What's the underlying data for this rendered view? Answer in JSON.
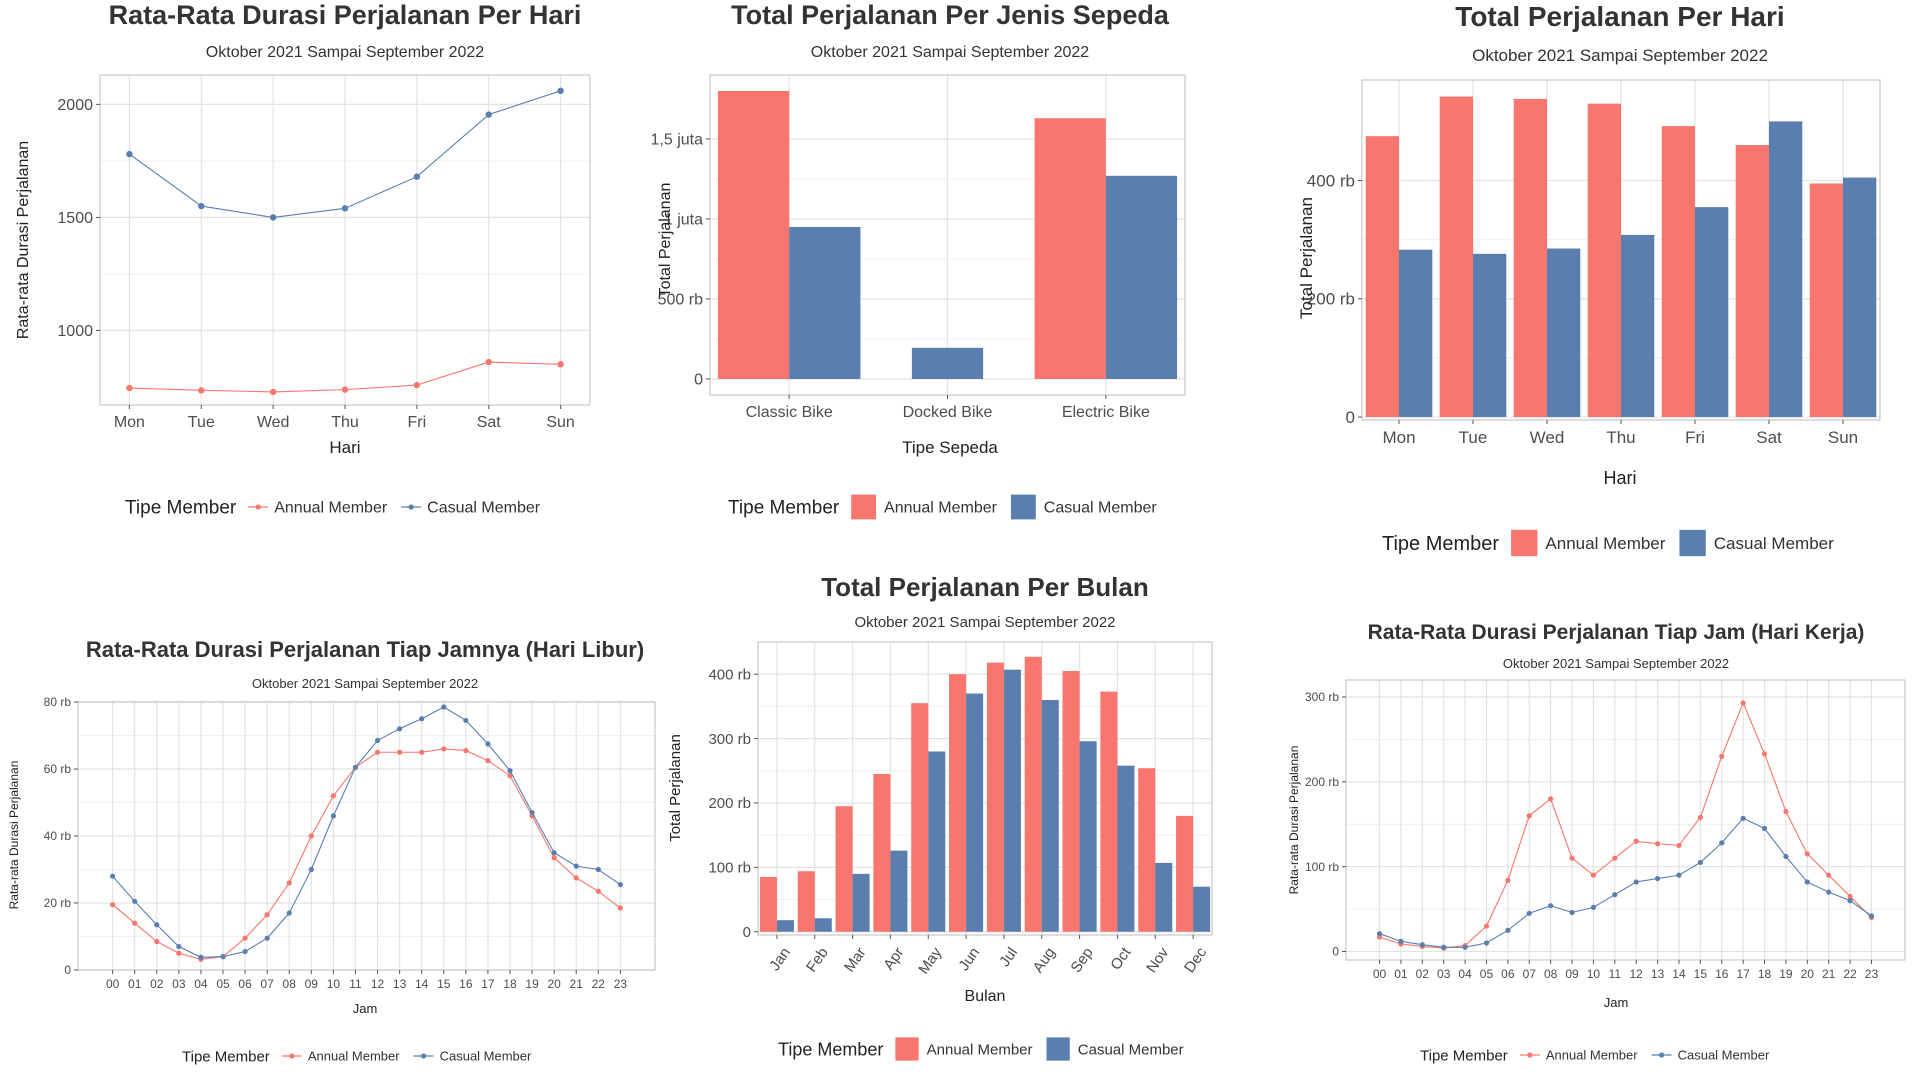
{
  "colors": {
    "annual": "#F8766D",
    "casual": "#5A7FAE",
    "grid": "#e3e3e3",
    "border": "#bdbdbd"
  },
  "chart_data": [
    {
      "id": "p1",
      "type": "line",
      "title": "Rata-Rata Durasi Perjalanan Per Hari",
      "subtitle": "Oktober 2021 Sampai September 2022",
      "xlabel": "Hari",
      "ylabel": "Rata-rata Durasi Perjalanan",
      "categories": [
        "Mon",
        "Tue",
        "Wed",
        "Thu",
        "Fri",
        "Sat",
        "Sun"
      ],
      "ylim": [
        670,
        2130
      ],
      "yticks": [
        1000,
        1500,
        2000
      ],
      "ytick_labels": [
        "1000",
        "1500",
        "2000"
      ],
      "grid": true,
      "legend_position": "bottom",
      "legend_title": "Tipe Member",
      "series": [
        {
          "name": "Annual Member",
          "color_key": "annual",
          "values": [
            745,
            735,
            728,
            738,
            758,
            860,
            850
          ]
        },
        {
          "name": "Casual Member",
          "color_key": "casual",
          "values": [
            1780,
            1550,
            1500,
            1540,
            1680,
            1955,
            2060
          ]
        }
      ]
    },
    {
      "id": "p2",
      "type": "bar",
      "title": "Total Perjalanan Per Jenis Sepeda",
      "subtitle": "Oktober 2021 Sampai September 2022",
      "xlabel": "Tipe Sepeda",
      "ylabel": "Total Perjalanan",
      "categories": [
        "Classic Bike",
        "Docked Bike",
        "Electric Bike"
      ],
      "ylim": [
        -100000,
        1900000
      ],
      "yticks": [
        0,
        500000,
        1000000,
        1500000
      ],
      "ytick_labels": [
        "0",
        "500 rb",
        "1 juta",
        "1,5 juta"
      ],
      "grid": true,
      "legend_position": "bottom",
      "legend_title": "Tipe Member",
      "series": [
        {
          "name": "Annual Member",
          "color_key": "annual",
          "values": [
            1800000,
            null,
            1630000
          ]
        },
        {
          "name": "Casual Member",
          "color_key": "casual",
          "values": [
            950000,
            195000,
            1270000
          ]
        }
      ]
    },
    {
      "id": "p3",
      "type": "bar",
      "title": "Total Perjalanan Per Hari",
      "subtitle": "Oktober 2021 Sampai September 2022",
      "xlabel": "Hari",
      "ylabel": "Total Perjalanan",
      "categories": [
        "Mon",
        "Tue",
        "Wed",
        "Thu",
        "Fri",
        "Sat",
        "Sun"
      ],
      "ylim": [
        -5000,
        570000
      ],
      "yticks": [
        0,
        200000,
        400000
      ],
      "ytick_labels": [
        "0",
        "200 rb",
        "400 rb"
      ],
      "grid": true,
      "legend_position": "bottom",
      "legend_title": "Tipe Member",
      "series": [
        {
          "name": "Annual Member",
          "color_key": "annual",
          "values": [
            475000,
            542000,
            538000,
            530000,
            492000,
            460000,
            395000
          ]
        },
        {
          "name": "Casual Member",
          "color_key": "casual",
          "values": [
            283000,
            276000,
            285000,
            308000,
            355000,
            500000,
            405000
          ]
        }
      ]
    },
    {
      "id": "p4",
      "type": "line",
      "title": "Rata-Rata Durasi Perjalanan Tiap Jamnya (Hari Libur)",
      "subtitle": "Oktober 2021 Sampai September 2022",
      "xlabel": "Jam",
      "ylabel": "Rata-rata Durasi Perjalanan",
      "categories": [
        "00",
        "01",
        "02",
        "03",
        "04",
        "05",
        "06",
        "07",
        "08",
        "09",
        "10",
        "11",
        "12",
        "13",
        "14",
        "15",
        "16",
        "17",
        "18",
        "19",
        "20",
        "21",
        "22",
        "23"
      ],
      "ylim": [
        0,
        80000
      ],
      "yticks": [
        0,
        20000,
        40000,
        60000,
        80000
      ],
      "ytick_labels": [
        "0",
        "20 rb",
        "40 rb",
        "60 rb",
        "80 rb"
      ],
      "grid": true,
      "legend_position": "bottom",
      "legend_title": "Tipe Member",
      "series": [
        {
          "name": "Annual Member",
          "color_key": "annual",
          "values": [
            19500,
            14000,
            8500,
            5000,
            3200,
            4000,
            9500,
            16500,
            26000,
            40000,
            52000,
            60500,
            65000,
            65000,
            65000,
            66000,
            65500,
            62500,
            58000,
            46000,
            33500,
            27500,
            23500,
            18500
          ]
        },
        {
          "name": "Casual Member",
          "color_key": "casual",
          "values": [
            28000,
            20500,
            13500,
            7000,
            3800,
            4000,
            5500,
            9500,
            17000,
            30000,
            46000,
            60500,
            68500,
            72000,
            75000,
            78500,
            74500,
            67500,
            59500,
            47000,
            35000,
            31000,
            30000,
            25500
          ]
        }
      ]
    },
    {
      "id": "p5",
      "type": "bar",
      "title": "Total Perjalanan Per Bulan",
      "subtitle": "Oktober 2021 Sampai September 2022",
      "xlabel": "Bulan",
      "ylabel": "Total Perjalanan",
      "categories": [
        "Jan",
        "Feb",
        "Mar",
        "Apr",
        "May",
        "Jun",
        "Jul",
        "Aug",
        "Sep",
        "Oct",
        "Nov",
        "Dec"
      ],
      "ylim": [
        -5000,
        450000
      ],
      "yticks": [
        0,
        100000,
        200000,
        300000,
        400000
      ],
      "ytick_labels": [
        "0",
        "100 rb",
        "200 rb",
        "300 rb",
        "400 rb"
      ],
      "grid": true,
      "legend_position": "bottom",
      "legend_title": "Tipe Member",
      "series": [
        {
          "name": "Annual Member",
          "color_key": "annual",
          "values": [
            85000,
            94000,
            195000,
            245000,
            355000,
            400000,
            418000,
            427000,
            405000,
            373000,
            254000,
            180000
          ]
        },
        {
          "name": "Casual Member",
          "color_key": "casual",
          "values": [
            18000,
            21000,
            90000,
            126000,
            280000,
            370000,
            407000,
            360000,
            296000,
            258000,
            107000,
            70000
          ]
        }
      ]
    },
    {
      "id": "p6",
      "type": "line",
      "title": "Rata-Rata Durasi Perjalanan Tiap Jam (Hari Kerja)",
      "subtitle": "Oktober 2021 Sampai September 2022",
      "xlabel": "Jam",
      "ylabel": "Rata-rata Durasi Perjalanan",
      "categories": [
        "00",
        "01",
        "02",
        "03",
        "04",
        "05",
        "06",
        "07",
        "08",
        "09",
        "10",
        "11",
        "12",
        "13",
        "14",
        "15",
        "16",
        "17",
        "18",
        "19",
        "20",
        "21",
        "22",
        "23"
      ],
      "ylim": [
        -10000,
        320000
      ],
      "yticks": [
        0,
        100000,
        200000,
        300000
      ],
      "ytick_labels": [
        "0",
        "100 rb",
        "200 rb",
        "300 rb"
      ],
      "grid": true,
      "legend_position": "bottom",
      "legend_title": "Tipe Member",
      "series": [
        {
          "name": "Annual Member",
          "color_key": "annual",
          "values": [
            17000,
            9000,
            6000,
            4000,
            7000,
            30000,
            84000,
            160000,
            180000,
            110000,
            90000,
            110000,
            130000,
            127000,
            125000,
            158000,
            230000,
            293000,
            233000,
            165000,
            115000,
            90000,
            65000,
            40000
          ]
        },
        {
          "name": "Casual Member",
          "color_key": "casual",
          "values": [
            21000,
            12000,
            8000,
            5000,
            5000,
            10000,
            25000,
            45000,
            54000,
            46000,
            52000,
            67000,
            82000,
            86000,
            90000,
            105000,
            128000,
            157000,
            145000,
            112000,
            82000,
            70000,
            60000,
            42000
          ]
        }
      ]
    }
  ]
}
